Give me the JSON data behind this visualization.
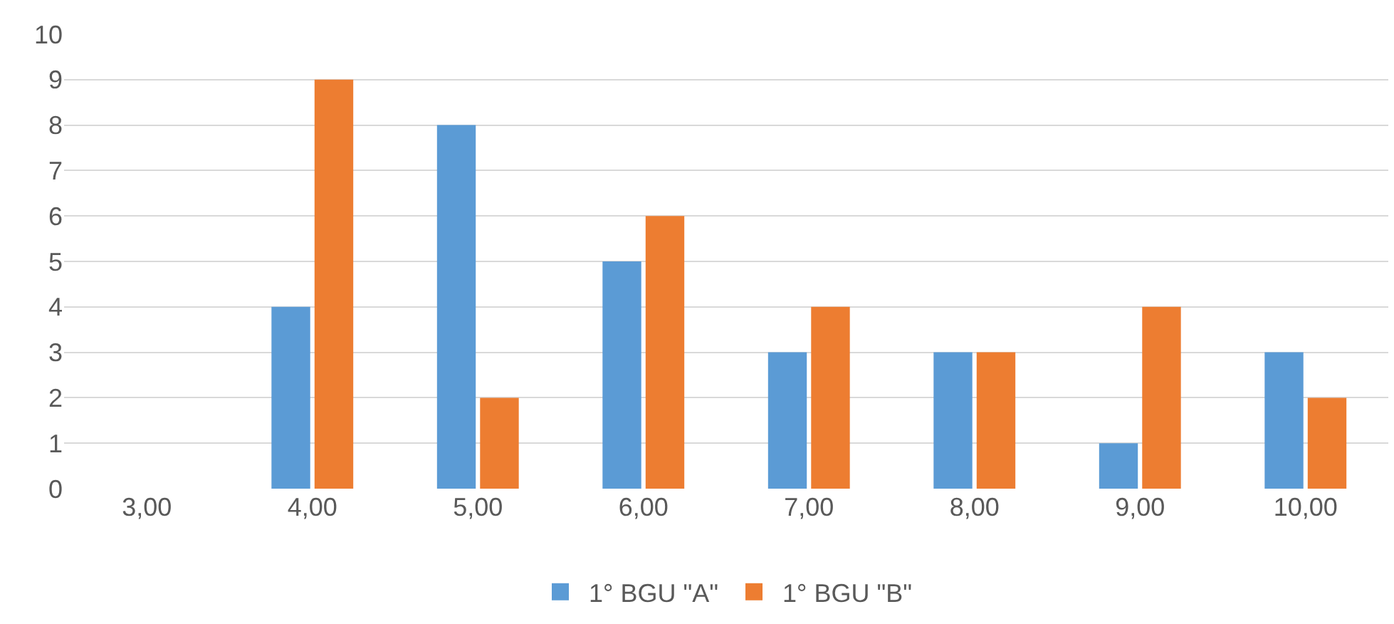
{
  "chart_data": {
    "type": "bar",
    "categories": [
      "3,00",
      "4,00",
      "5,00",
      "6,00",
      "7,00",
      "8,00",
      "9,00",
      "10,00"
    ],
    "series": [
      {
        "name": "1° BGU \"A\"",
        "color": "#5b9bd5",
        "values": [
          0,
          4,
          8,
          5,
          3,
          3,
          1,
          3
        ]
      },
      {
        "name": "1° BGU \"B\"",
        "color": "#ed7d31",
        "values": [
          0,
          9,
          2,
          6,
          4,
          3,
          4,
          2
        ]
      }
    ],
    "ylim": [
      0,
      10
    ],
    "yticks": [
      0,
      1,
      2,
      3,
      4,
      5,
      6,
      7,
      8,
      9,
      10
    ],
    "grid": "y",
    "legend": "bottom"
  }
}
